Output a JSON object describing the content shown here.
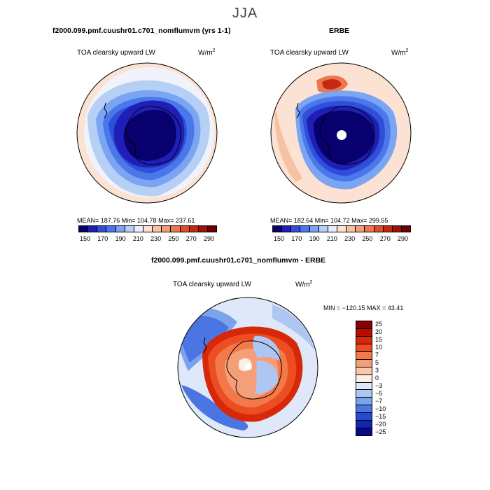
{
  "suptitle": "JJA",
  "panels": [
    {
      "title": "f2000.099.pmf.cuushr01.c701_nomflumvm (yrs 1-1)",
      "var_label": "TOA clearsky upward LW",
      "units": "W/m",
      "units_sup": "2",
      "stats": "MEAN= 187.76   Min= 104.78   Max= 237.61",
      "colorbar_labels": [
        "150",
        "170",
        "190",
        "210",
        "230",
        "250",
        "270",
        "290"
      ]
    },
    {
      "title": "ERBE",
      "var_label": "TOA clearsky upward LW",
      "units": "W/m",
      "units_sup": "2",
      "stats": "MEAN= 182.64   Min= 104.72   Max= 299.55",
      "colorbar_labels": [
        "150",
        "170",
        "190",
        "210",
        "230",
        "250",
        "270",
        "290"
      ]
    }
  ],
  "diff_panel": {
    "title": "f2000.099.pmf.cuushr01.c701_nomflumvm - ERBE",
    "var_label": "TOA clearsky upward LW",
    "units": "W/m",
    "units_sup": "2",
    "stats": "MIN = −120.15  MAX =  43.41",
    "colorbar_labels": [
      "25",
      "20",
      "15",
      "10",
      "7",
      "5",
      "3",
      "0",
      "−3",
      "−5",
      "−7",
      "−10",
      "−15",
      "−20",
      "−25"
    ]
  },
  "colors": {
    "abs_scale": [
      "#08006e",
      "#1f1fb8",
      "#2e4fd8",
      "#4a78ea",
      "#7ba4f2",
      "#b6cff5",
      "#e8eefb",
      "#fbe2d2",
      "#f7c2a4",
      "#f29c78",
      "#ec7552",
      "#e04b2c",
      "#c42811",
      "#9c1206",
      "#6c0000"
    ],
    "diff_scale": [
      "#8a0000",
      "#b50d00",
      "#d8280a",
      "#ec4d21",
      "#f2794a",
      "#f59f78",
      "#f9c8aa",
      "#fbeee4",
      "#dfe8f8",
      "#aec7f2",
      "#7ba2ec",
      "#4a75e2",
      "#2849d2",
      "#1424b6",
      "#050a86"
    ]
  }
}
